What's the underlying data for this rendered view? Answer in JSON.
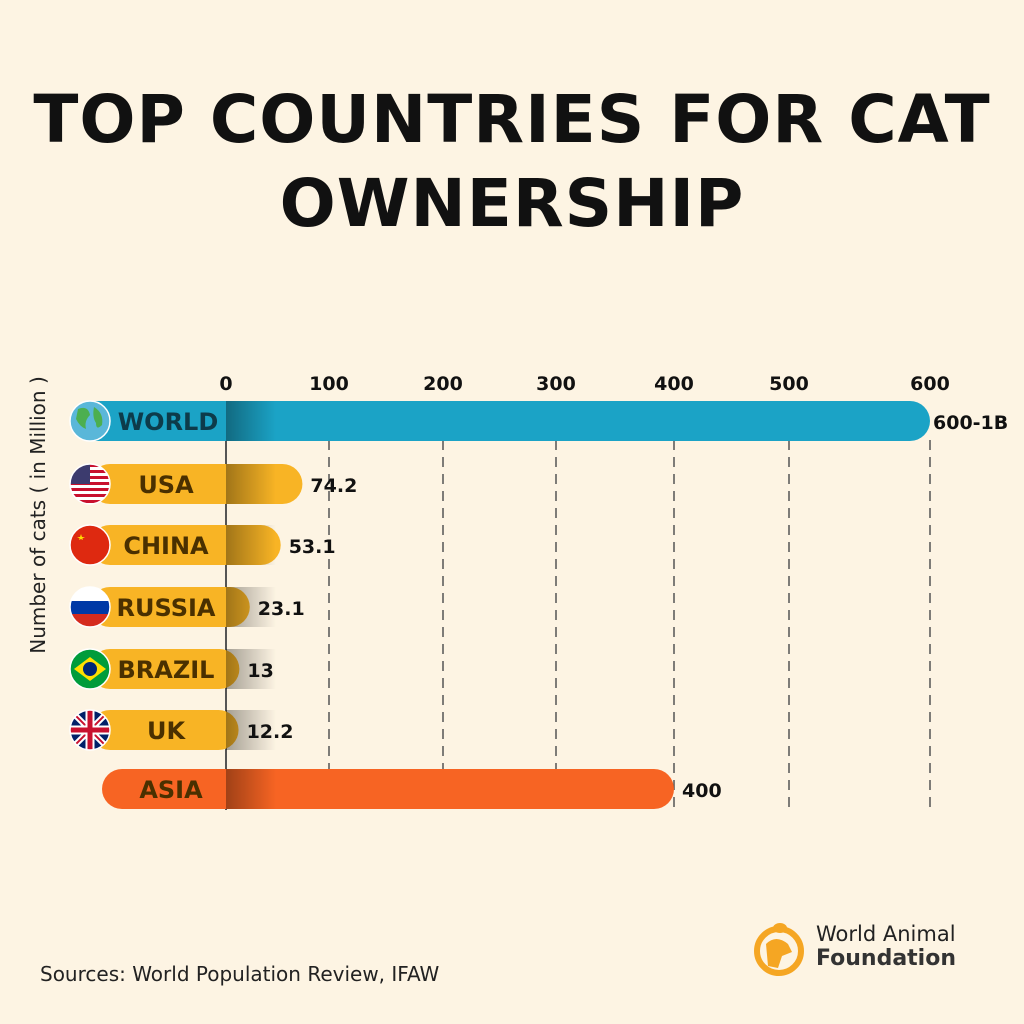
{
  "chart_data": {
    "type": "bar",
    "orientation": "horizontal",
    "title": "TOP COUNTRIES FOR CAT OWNERSHIP",
    "ylabel": "Number of cats ( in Million )",
    "xlim": [
      0,
      600
    ],
    "xticks": [
      "0",
      "100",
      "200",
      "300",
      "400",
      "500",
      "600"
    ],
    "grid": "vertical dashed",
    "categories": [
      "WORLD",
      "USA",
      "CHINA",
      "RUSSIA",
      "BRAZIL",
      "UK",
      "ASIA"
    ],
    "values": [
      600,
      74.2,
      53.1,
      23.1,
      13,
      12.2,
      400
    ],
    "value_labels": [
      "600-1B",
      "74.2",
      "53.1",
      "23.1",
      "13",
      "12.2",
      "400"
    ],
    "icons": [
      "globe-icon",
      "usa-flag-icon",
      "china-flag-icon",
      "russia-flag-icon",
      "brazil-flag-icon",
      "uk-flag-icon",
      ""
    ],
    "colors": [
      "#1ba3c6",
      "#f8b425",
      "#f8b425",
      "#f8b425",
      "#f8b425",
      "#f8b425",
      "#f76423"
    ]
  },
  "footer": {
    "source": "Sources: World Population Review, IFAW"
  },
  "logo": {
    "line1": "World Animal",
    "line2": "Foundation",
    "color": "#f5a623"
  }
}
